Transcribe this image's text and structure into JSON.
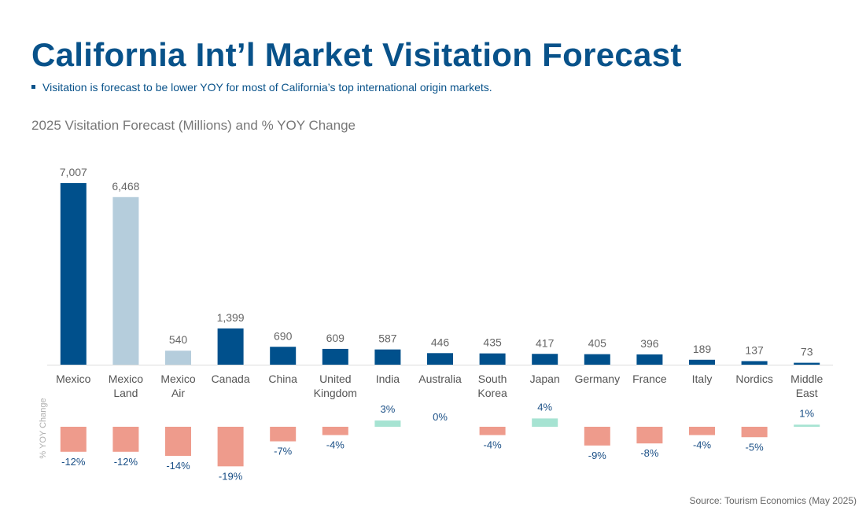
{
  "header": {
    "title": "California Int’l Market Visitation Forecast",
    "bullet": "Visitation is forecast to be lower YOY for most of California’s top international origin markets."
  },
  "footer": {
    "source": "Source: Tourism Economics (May 2025)"
  },
  "colors": {
    "title": "#08528a",
    "bar_dark": "#00508c",
    "bar_light": "#b5cddc",
    "negative": "#ee9b8c",
    "positive": "#a6e3d2",
    "value_label": "#666666",
    "pct_label": "#1a4f86",
    "category_label": "#555555"
  },
  "chart_data": {
    "type": "bar",
    "title": "2025 Visitation Forecast (Millions) and % YOY Change",
    "secondary_axis_label": "% YOY Change",
    "categories": [
      [
        "Mexico"
      ],
      [
        "Mexico",
        "Land"
      ],
      [
        "Mexico",
        "Air"
      ],
      [
        "Canada"
      ],
      [
        "China"
      ],
      [
        "United",
        "Kingdom"
      ],
      [
        "India"
      ],
      [
        "Australia"
      ],
      [
        "South",
        "Korea"
      ],
      [
        "Japan"
      ],
      [
        "Germany"
      ],
      [
        "France"
      ],
      [
        "Italy"
      ],
      [
        "Nordics"
      ],
      [
        "Middle",
        "East"
      ]
    ],
    "series": [
      {
        "name": "2025 Visitation Forecast",
        "values": [
          7007,
          6468,
          540,
          1399,
          690,
          609,
          587,
          446,
          435,
          417,
          405,
          396,
          189,
          137,
          73
        ],
        "labels": [
          "7,007",
          "6,468",
          "540",
          "1,399",
          "690",
          "609",
          "587",
          "446",
          "435",
          "417",
          "405",
          "396",
          "189",
          "137",
          "73"
        ],
        "shade": [
          "dark",
          "light",
          "light",
          "dark",
          "dark",
          "dark",
          "dark",
          "dark",
          "dark",
          "dark",
          "dark",
          "dark",
          "dark",
          "dark",
          "dark"
        ]
      },
      {
        "name": "% YOY Change",
        "values": [
          -12,
          -12,
          -14,
          -19,
          -7,
          -4,
          3,
          0,
          -4,
          4,
          -9,
          -8,
          -4,
          -5,
          1
        ],
        "labels": [
          "-12%",
          "-12%",
          "-14%",
          "-19%",
          "-7%",
          "-4%",
          "3%",
          "0%",
          "-4%",
          "4%",
          "-9%",
          "-8%",
          "-4%",
          "-5%",
          "1%"
        ]
      }
    ],
    "ylim": [
      0,
      7007
    ],
    "yoy_lim": [
      -19,
      4
    ],
    "legend": "none",
    "grid": false
  }
}
